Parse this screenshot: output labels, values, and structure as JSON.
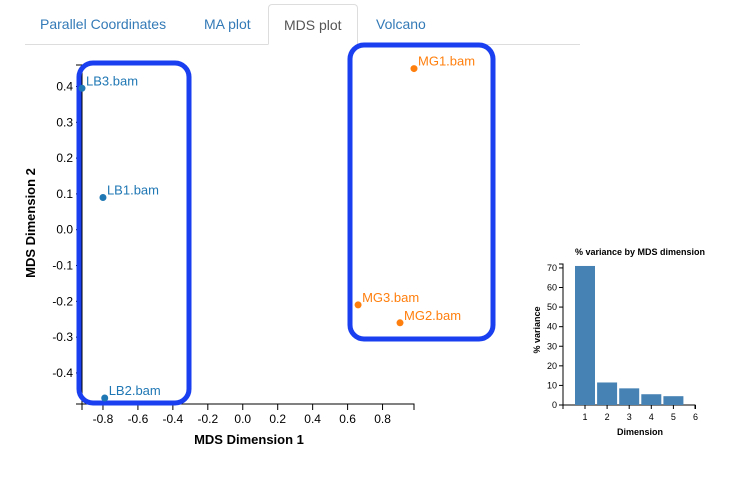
{
  "tabs": [
    {
      "label": "Parallel Coordinates",
      "active": false
    },
    {
      "label": "MA plot",
      "active": false
    },
    {
      "label": "MDS plot",
      "active": true
    },
    {
      "label": "Volcano",
      "active": false
    }
  ],
  "colors": {
    "group_lb": "#1f77b4",
    "group_mg": "#ff7f0e",
    "highlight": "#1a3ff0",
    "bar": "#4682b4",
    "tab_link": "#337ab7"
  },
  "chart_data": [
    {
      "type": "scatter",
      "xlabel": "MDS Dimension 1",
      "ylabel": "MDS Dimension 2",
      "xlim": [
        -0.92,
        0.98
      ],
      "ylim": [
        -0.47,
        0.46
      ],
      "xticks": [
        "-0.8",
        "-0.6",
        "-0.4",
        "-0.2",
        "0.0",
        "0.2",
        "0.4",
        "0.6",
        "0.8"
      ],
      "yticks": [
        "-0.4",
        "-0.3",
        "-0.2",
        "-0.1",
        "0.0",
        "0.1",
        "0.2",
        "0.3",
        "0.4"
      ],
      "points": [
        {
          "label": "LB3.bam",
          "x": -0.92,
          "y": 0.395,
          "group": "LB"
        },
        {
          "label": "LB1.bam",
          "x": -0.8,
          "y": 0.09,
          "group": "LB"
        },
        {
          "label": "LB2.bam",
          "x": -0.79,
          "y": -0.47,
          "group": "LB"
        },
        {
          "label": "MG1.bam",
          "x": 0.98,
          "y": 0.45,
          "group": "MG"
        },
        {
          "label": "MG3.bam",
          "x": 0.66,
          "y": -0.21,
          "group": "MG"
        },
        {
          "label": "MG2.bam",
          "x": 0.9,
          "y": -0.26,
          "group": "MG"
        }
      ]
    },
    {
      "type": "bar",
      "title": "% variance by MDS dimension",
      "xlabel": "Dimension",
      "ylabel": "% variance",
      "categories": [
        "1",
        "2",
        "3",
        "4",
        "5"
      ],
      "xticks": [
        "1",
        "2",
        "3",
        "4",
        "5",
        "6"
      ],
      "yticks": [
        "0",
        "10",
        "20",
        "30",
        "40",
        "50",
        "60",
        "70"
      ],
      "values": [
        71,
        11.5,
        8.5,
        5.5,
        4.5
      ],
      "ylim": [
        0,
        72
      ]
    }
  ]
}
